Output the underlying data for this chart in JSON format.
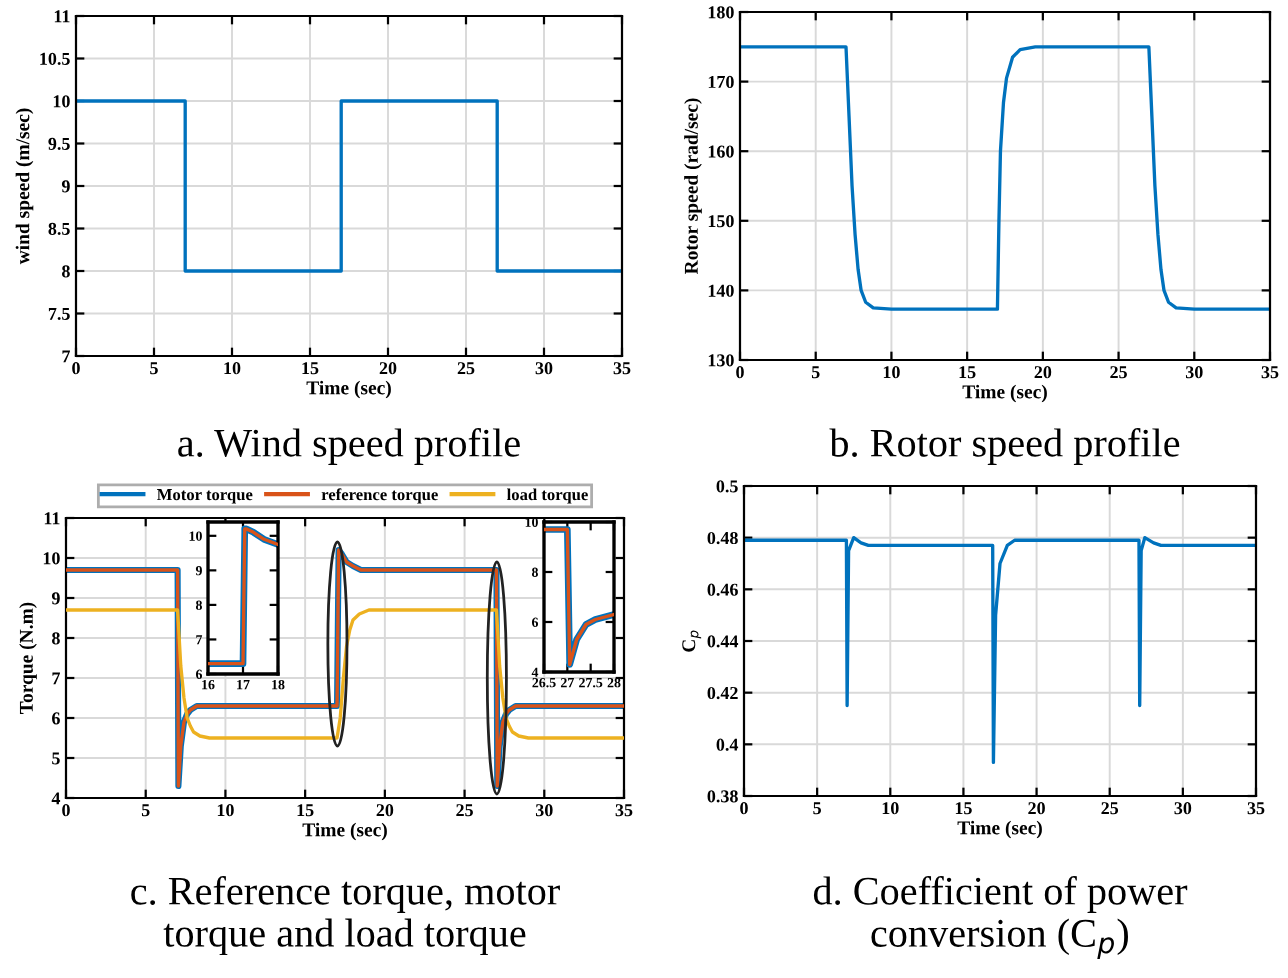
{
  "chart_data": [
    {
      "type": "line",
      "title": "a. Wind speed profile",
      "xlabel": "Time (sec)",
      "ylabel": "wind speed (m/sec)",
      "xlim": [
        0,
        35
      ],
      "ylim": [
        7,
        11
      ],
      "xticks": [
        0,
        5,
        10,
        15,
        20,
        25,
        30,
        35
      ],
      "yticks": [
        7,
        7.5,
        8,
        8.5,
        9,
        9.5,
        10,
        10.5,
        11
      ],
      "grid": true,
      "legend": false,
      "series": [
        {
          "color": "#0072bd",
          "x": [
            0,
            7,
            7,
            17,
            17,
            27,
            27,
            35
          ],
          "values": [
            10,
            10,
            8,
            8,
            10,
            10,
            8,
            8
          ]
        }
      ]
    },
    {
      "type": "line",
      "title": "b. Rotor speed profile",
      "xlabel": "Time (sec)",
      "ylabel": "Rotor speed (rad/sec)",
      "xlim": [
        0,
        35
      ],
      "ylim": [
        130,
        180
      ],
      "xticks": [
        0,
        5,
        10,
        15,
        20,
        25,
        30,
        35
      ],
      "yticks": [
        130,
        140,
        150,
        160,
        170,
        180
      ],
      "grid": true,
      "legend": false,
      "series": [
        {
          "color": "#0072bd",
          "x": [
            0,
            7,
            7.2,
            7.4,
            7.6,
            7.8,
            8,
            8.3,
            8.8,
            10,
            17,
            17.1,
            17.2,
            17.4,
            17.6,
            18,
            18.5,
            19.5,
            27,
            27.2,
            27.4,
            27.6,
            27.8,
            28,
            28.3,
            28.8,
            30,
            35
          ],
          "values": [
            175,
            175,
            165,
            155,
            148,
            143,
            140,
            138.3,
            137.5,
            137.3,
            137.3,
            150,
            160,
            167,
            170.5,
            173.5,
            174.6,
            175,
            175,
            165,
            155,
            148,
            143,
            140,
            138.3,
            137.5,
            137.3,
            137.3
          ]
        }
      ]
    },
    {
      "type": "line",
      "title": "c. Reference torque, motor\ntorque and load torque",
      "xlabel": "Time (sec)",
      "ylabel": "Torque (N.m)",
      "xlim": [
        0,
        35
      ],
      "ylim": [
        4,
        11
      ],
      "xticks": [
        0,
        5,
        10,
        15,
        20,
        25,
        30,
        35
      ],
      "yticks": [
        4,
        5,
        6,
        7,
        8,
        9,
        10,
        11
      ],
      "grid": true,
      "legend": "top",
      "series": [
        {
          "name": "Motor torque",
          "color": "#0072bd",
          "x": [
            0,
            7,
            7.05,
            7.2,
            7.4,
            7.6,
            7.8,
            8.2,
            9,
            17,
            17.1,
            17.3,
            17.6,
            18,
            18.5,
            27,
            27.05,
            27.2,
            27.4,
            27.6,
            27.8,
            28.2,
            29,
            35
          ],
          "values": [
            9.7,
            9.7,
            4.3,
            5.3,
            5.9,
            6.1,
            6.2,
            6.3,
            6.3,
            6.3,
            10.2,
            10.1,
            9.9,
            9.8,
            9.7,
            9.7,
            4.3,
            5.3,
            5.9,
            6.1,
            6.2,
            6.3,
            6.3,
            6.3
          ]
        },
        {
          "name": "reference torque",
          "color": "#d95319",
          "x": [
            0,
            7,
            7.05,
            7.2,
            7.4,
            7.6,
            7.8,
            8.2,
            9,
            17,
            17.1,
            17.3,
            17.6,
            18,
            18.5,
            27,
            27.05,
            27.2,
            27.4,
            27.6,
            27.8,
            28.2,
            29,
            35
          ],
          "values": [
            9.7,
            9.7,
            4.3,
            5.3,
            5.9,
            6.1,
            6.2,
            6.3,
            6.3,
            6.3,
            10.2,
            10.1,
            9.9,
            9.8,
            9.7,
            9.7,
            4.3,
            5.3,
            5.9,
            6.1,
            6.2,
            6.3,
            6.3,
            6.3
          ]
        },
        {
          "name": "load torque",
          "color": "#edb120",
          "x": [
            0,
            7,
            7.2,
            7.4,
            7.6,
            7.8,
            8,
            8.4,
            9,
            17,
            17.2,
            17.4,
            17.6,
            17.8,
            18,
            18.4,
            19,
            27,
            27.2,
            27.4,
            27.6,
            27.8,
            28,
            28.4,
            29,
            35
          ],
          "values": [
            8.7,
            8.7,
            7.3,
            6.5,
            6.0,
            5.8,
            5.65,
            5.55,
            5.5,
            5.5,
            6.0,
            7.0,
            7.8,
            8.2,
            8.45,
            8.6,
            8.7,
            8.7,
            7.3,
            6.5,
            6.0,
            5.8,
            5.65,
            5.55,
            5.5,
            5.5
          ]
        }
      ]
    },
    {
      "type": "line",
      "xlim": [
        16,
        18
      ],
      "ylim": [
        6,
        10.4
      ],
      "xticks": [
        16,
        17,
        18
      ],
      "yticks": [
        6,
        7,
        8,
        9,
        10
      ],
      "legend": false,
      "series": [
        {
          "color": "#0072bd",
          "x": [
            16,
            17,
            17.05,
            17.1,
            17.3,
            17.6,
            18
          ],
          "values": [
            6.3,
            6.3,
            10.2,
            10.2,
            10.1,
            9.9,
            9.75
          ]
        },
        {
          "color": "#d95319",
          "x": [
            16,
            17,
            17.05,
            17.1,
            17.3,
            17.6,
            18
          ],
          "values": [
            6.3,
            6.3,
            10.2,
            10.2,
            10.1,
            9.9,
            9.75
          ]
        }
      ]
    },
    {
      "type": "line",
      "xlim": [
        26.5,
        28
      ],
      "ylim": [
        4,
        10
      ],
      "xticks": [
        26.5,
        27,
        27.5,
        28
      ],
      "yticks": [
        4,
        6,
        8,
        10
      ],
      "legend": false,
      "series": [
        {
          "color": "#0072bd",
          "x": [
            26.5,
            27,
            27.05,
            27.2,
            27.4,
            27.6,
            27.8,
            28
          ],
          "values": [
            9.7,
            9.7,
            4.3,
            5.3,
            5.9,
            6.1,
            6.2,
            6.3
          ]
        },
        {
          "color": "#d95319",
          "x": [
            26.5,
            27,
            27.05,
            27.2,
            27.4,
            27.6,
            27.8,
            28
          ],
          "values": [
            9.7,
            9.7,
            4.3,
            5.3,
            5.9,
            6.1,
            6.2,
            6.3
          ]
        }
      ]
    },
    {
      "type": "line",
      "title": "d. Coefficient of power\nconversion (C$_{p}$)",
      "xlabel": "Time (sec)",
      "ylabel": "C$_{p}$",
      "xlim": [
        0,
        35
      ],
      "ylim": [
        0.38,
        0.5
      ],
      "xticks": [
        0,
        5,
        10,
        15,
        20,
        25,
        30,
        35
      ],
      "yticks": [
        0.38,
        0.4,
        0.42,
        0.44,
        0.46,
        0.48,
        0.5
      ],
      "grid": true,
      "legend": false,
      "series": [
        {
          "color": "#0072bd",
          "x": [
            0,
            7,
            7.05,
            7.15,
            7.5,
            8,
            8.5,
            17,
            17.05,
            17.2,
            17.5,
            18,
            18.5,
            27,
            27.05,
            27.15,
            27.4,
            28,
            28.5,
            35
          ],
          "values": [
            0.479,
            0.479,
            0.415,
            0.475,
            0.48,
            0.478,
            0.477,
            0.477,
            0.393,
            0.45,
            0.47,
            0.477,
            0.479,
            0.479,
            0.415,
            0.475,
            0.48,
            0.478,
            0.477,
            0.477
          ]
        }
      ]
    }
  ]
}
